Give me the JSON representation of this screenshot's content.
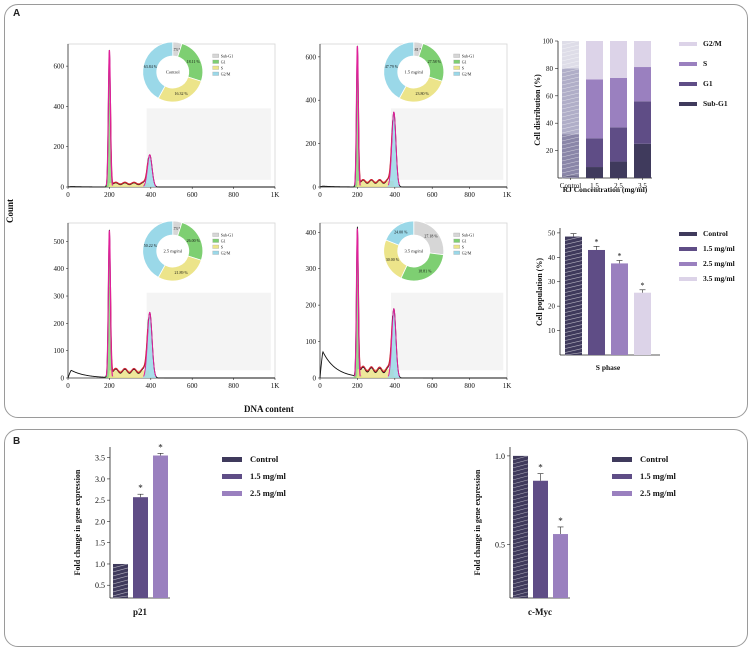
{
  "panels": {
    "a": "A",
    "b": "B"
  },
  "colors": {
    "control": "#3f3a5c",
    "dose1": "#5f4d86",
    "dose2": "#9a80bf",
    "dose3": "#dcd3e8",
    "g1": "#7ecf72",
    "s": "#ece48a",
    "g2m": "#9ad8e8",
    "subg1": "#d6d6d6",
    "red": "#cc2233",
    "magenta": "#e0209a",
    "teal": "#2aa8c8"
  },
  "histograms": {
    "y_axis_label": "Count",
    "x_axis_label": "DNA content",
    "legend_labels": [
      "Sub-G1",
      "G1",
      "S",
      "G2/M"
    ],
    "plots": [
      {
        "donut_title": "Control",
        "ymax": 700,
        "yticks": [
          "0",
          "200",
          "400",
          "600"
        ],
        "xticks": [
          "0",
          "200",
          "400",
          "600",
          "800",
          "1K"
        ],
        "pct_texts": [
          "1.73 %",
          "18.11 %",
          "16.32 %",
          "63.84 %"
        ],
        "peak_values": [
          680,
          160
        ],
        "base_values": [
          3,
          4
        ]
      },
      {
        "donut_title": "1.5 mg/ml",
        "ymax": 650,
        "yticks": [
          "0",
          "200",
          "400",
          "600"
        ],
        "xticks": [
          "0",
          "200",
          "400",
          "600",
          "800",
          "1K"
        ],
        "pct_texts": [
          "0.81 %",
          "27.58 %",
          "23.80 %",
          "47.79 %"
        ],
        "peak_values": [
          650,
          345
        ],
        "base_values": [
          5,
          6
        ]
      },
      {
        "donut_title": "2.5 mg/ml",
        "ymax": 560,
        "yticks": [
          "0",
          "100",
          "200",
          "300",
          "400",
          "500"
        ],
        "xticks": [
          "0",
          "200",
          "400",
          "600",
          "800",
          "1K"
        ],
        "pct_texts": [
          "1.73 %",
          "26.00 %",
          "21.89 %",
          "50.22 %"
        ],
        "peak_values": [
          540,
          240
        ],
        "base_values": [
          35,
          6
        ]
      },
      {
        "donut_title": "3.5 mg/ml",
        "ymax": 420,
        "yticks": [
          "0",
          "100",
          "200",
          "300",
          "400"
        ],
        "xticks": [
          "0",
          "200",
          "400",
          "600",
          "800",
          "1K"
        ],
        "pct_texts": [
          "27.18 %",
          "18.81 %",
          "30.00 %",
          "24.00 %"
        ],
        "peak_values": [
          410,
          190
        ],
        "base_values": [
          90,
          5
        ]
      }
    ]
  },
  "chart_data": [
    {
      "type": "bar",
      "subtype": "stacked",
      "ylabel": "Cell distribution (%)",
      "xlabel": "RJ Concentration (mg/ml)",
      "categories": [
        "Control",
        "1.5",
        "2.5",
        "3.5"
      ],
      "ylim": [
        0,
        100
      ],
      "yticks": [
        "20",
        "40",
        "60",
        "80",
        "100"
      ],
      "series": [
        {
          "name": "Sub-G1",
          "values": [
            2,
            8,
            12,
            25
          ]
        },
        {
          "name": "G1",
          "values": [
            30,
            21,
            25,
            31
          ]
        },
        {
          "name": "S",
          "values": [
            48,
            43,
            36,
            25
          ]
        },
        {
          "name": "G2/M",
          "values": [
            20,
            28,
            27,
            19
          ]
        }
      ]
    },
    {
      "type": "bar",
      "ylabel": "Cell population (%)",
      "xlabel": "S phase",
      "categories": [
        "Control",
        "1.5 mg/ml",
        "2.5 mg/ml",
        "3.5 mg/ml"
      ],
      "values": [
        48.5,
        43,
        37.5,
        25.5
      ],
      "errors": [
        1.2,
        1.5,
        1.2,
        1.2
      ],
      "significance": [
        "",
        "*",
        "*",
        "*"
      ],
      "ylim": [
        0,
        52
      ],
      "yticks": [
        "10",
        "20",
        "30",
        "40",
        "50"
      ]
    },
    {
      "type": "bar",
      "ylabel": "Fold change in  gene expression",
      "xlabel": "p21",
      "categories": [
        "Control",
        "1.5 mg/ml",
        "2.5 mg/ml"
      ],
      "values": [
        1.0,
        2.57,
        3.55
      ],
      "errors": [
        0,
        0.07,
        0.05
      ],
      "significance": [
        "",
        "*",
        "*"
      ],
      "ylim": [
        0.2,
        3.75
      ],
      "yticks": [
        "0.5",
        "1.0",
        "1.5",
        "2.0",
        "2.5",
        "3.0",
        "3.5"
      ]
    },
    {
      "type": "bar",
      "ylabel": "Fold change in  gene expression",
      "xlabel": "c-Myc",
      "categories": [
        "Control",
        "1.5 mg/ml",
        "2.5 mg/ml"
      ],
      "values": [
        1.0,
        0.86,
        0.56
      ],
      "errors": [
        0,
        0.04,
        0.04
      ],
      "significance": [
        "",
        "*",
        "*"
      ],
      "ylim": [
        0.2,
        1.05
      ],
      "yticks": [
        "0.5",
        "1.0"
      ]
    }
  ]
}
